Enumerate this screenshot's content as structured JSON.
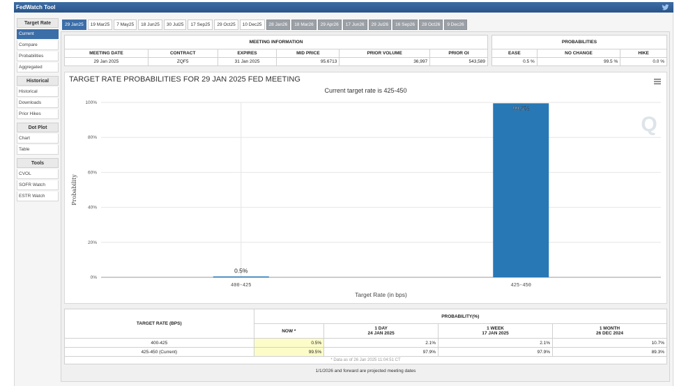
{
  "app": {
    "title": "FedWatch Tool"
  },
  "sidebar": {
    "groups": [
      {
        "header": "Target Rate",
        "items": [
          "Current",
          "Compare",
          "Probabilities",
          "Aggregated"
        ]
      },
      {
        "header": "Historical",
        "items": [
          "Historical",
          "Downloads",
          "Prior Hikes"
        ]
      },
      {
        "header": "Dot Plot",
        "items": [
          "Chart",
          "Table"
        ]
      },
      {
        "header": "Tools",
        "items": [
          "CVOL",
          "SOFR Watch",
          "ESTR Watch"
        ]
      }
    ]
  },
  "tabs": [
    "29 Jan25",
    "19 Mar25",
    "7 May25",
    "18 Jun25",
    "30 Jul25",
    "17 Sep25",
    "29 Oct25",
    "10 Dec25",
    "28 Jan26",
    "18 Mar26",
    "29 Apr26",
    "17 Jun26",
    "29 Jul26",
    "16 Sep26",
    "28 Oct26",
    "9 Dec26"
  ],
  "meeting_info": {
    "title": "MEETING INFORMATION",
    "headers": [
      "MEETING DATE",
      "CONTRACT",
      "EXPIRES",
      "MID PRICE",
      "PRIOR VOLUME",
      "PRIOR OI"
    ],
    "values": [
      "29 Jan 2025",
      "ZQF5",
      "31 Jan 2025",
      "95.6713",
      "36,997",
      "543,589"
    ]
  },
  "probabilities_panel": {
    "title": "PROBABILITIES",
    "headers": [
      "EASE",
      "NO CHANGE",
      "HIKE"
    ],
    "values": [
      "0.5 %",
      "99.5 %",
      "0.0 %"
    ]
  },
  "chart_data": {
    "type": "bar",
    "title": "TARGET RATE PROBABILITIES FOR 29 JAN 2025 FED MEETING",
    "subtitle": "Current target rate is 425-450",
    "xlabel": "Target Rate (in bps)",
    "ylabel": "Probability",
    "categories": [
      "400-425",
      "425-450"
    ],
    "values": [
      0.5,
      99.5
    ],
    "data_labels": [
      "0.5%",
      "99.5%"
    ],
    "ylim": [
      0,
      100
    ],
    "yticks": [
      "0%",
      "20%",
      "40%",
      "60%",
      "80%",
      "100%"
    ],
    "ytick_values": [
      0,
      20,
      40,
      60,
      80,
      100
    ],
    "bar_color": "#2878b5",
    "watermark": "Q"
  },
  "prob_table": {
    "header_left": "TARGET RATE (BPS)",
    "header_right": "PROBABILITY(%)",
    "columns": [
      {
        "label": "NOW *",
        "sub": ""
      },
      {
        "label": "1 DAY",
        "sub": "24 JAN 2025"
      },
      {
        "label": "1 WEEK",
        "sub": "17 JAN 2025"
      },
      {
        "label": "1 MONTH",
        "sub": "26 DEC 2024"
      }
    ],
    "rows": [
      {
        "rate": "400-425",
        "values": [
          "0.5%",
          "2.1%",
          "2.1%",
          "10.7%"
        ]
      },
      {
        "rate": "425-450 (Current)",
        "values": [
          "99.5%",
          "97.9%",
          "97.9%",
          "89.3%"
        ]
      }
    ],
    "data_note": "* Data as of 26 Jan 2025 11:04:51 CT"
  },
  "footnote": "1/1/2026 and forward are projected meeting dates"
}
